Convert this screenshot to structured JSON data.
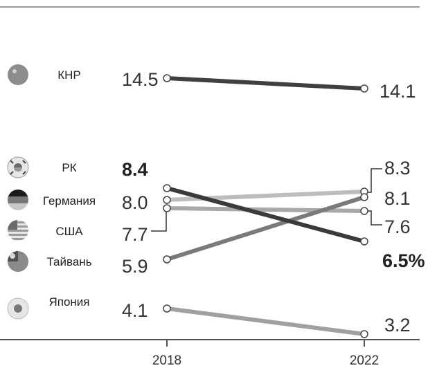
{
  "chart_data": {
    "type": "line",
    "x": [
      "2018",
      "2022"
    ],
    "series": [
      {
        "name": "КНР",
        "values": [
          14.5,
          14.1
        ],
        "color": "#404040",
        "value_labels": [
          "14.5",
          "14.1"
        ]
      },
      {
        "name": "РК",
        "values": [
          8.4,
          6.5
        ],
        "color": "#3a3a3a",
        "value_labels": [
          "8.4",
          "6.5%"
        ]
      },
      {
        "name": "Германия",
        "values": [
          8.0,
          8.3
        ],
        "color": "#bdbdbd",
        "value_labels": [
          "8.0",
          "8.3"
        ]
      },
      {
        "name": "США",
        "values": [
          7.7,
          7.6
        ],
        "color": "#a8a8a8",
        "value_labels": [
          "7.7",
          "7.6"
        ]
      },
      {
        "name": "Тайвань",
        "values": [
          5.9,
          8.1
        ],
        "color": "#7a7a7a",
        "value_labels": [
          "5.9",
          "8.1"
        ]
      },
      {
        "name": "Япония",
        "values": [
          4.1,
          3.2
        ],
        "color": "#a0a0a0",
        "value_labels": [
          "4.1",
          "3.2"
        ]
      }
    ],
    "grid": false,
    "legend": "left"
  },
  "icons": [
    "china-flag-icon",
    "korea-flag-icon",
    "germany-flag-icon",
    "usa-flag-icon",
    "taiwan-flag-icon",
    "japan-flag-icon"
  ]
}
